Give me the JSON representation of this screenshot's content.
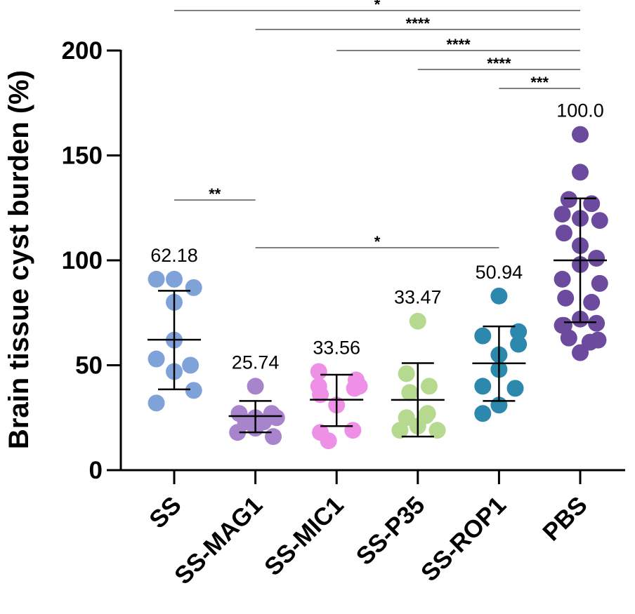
{
  "chart_data": {
    "type": "scatter",
    "title": "",
    "xlabel": "",
    "ylabel": "Brain tissue cyst burden (%)",
    "ylim": [
      0,
      200
    ],
    "yticks": [
      0,
      50,
      100,
      150,
      200
    ],
    "ytick_labels": [
      "0",
      "50",
      "100",
      "150",
      "200"
    ],
    "grid": false,
    "categories": [
      "SS",
      "SS-MAG1",
      "SS-MIC1",
      "SS-P35",
      "SS-ROP1",
      "PBS"
    ],
    "series": [
      {
        "name": "SS",
        "color": "#7FA3D8",
        "mean": 62.18,
        "mean_label": "62.18",
        "sd_low": 38.5,
        "sd_high": 85.5,
        "points": [
          [
            -0.22,
            91
          ],
          [
            0.0,
            91
          ],
          [
            0.24,
            87
          ],
          [
            0.0,
            80
          ],
          [
            0.0,
            62
          ],
          [
            -0.22,
            53
          ],
          [
            0.2,
            50
          ],
          [
            0.0,
            47
          ],
          [
            -0.22,
            32
          ],
          [
            0.24,
            38
          ]
        ]
      },
      {
        "name": "SS-MAG1",
        "color": "#A784CB",
        "mean": 25.74,
        "mean_label": "25.74",
        "sd_low": 18,
        "sd_high": 33,
        "points": [
          [
            0.0,
            40
          ],
          [
            -0.2,
            27
          ],
          [
            0.2,
            27
          ],
          [
            -0.12,
            23
          ],
          [
            0.1,
            23
          ],
          [
            0.0,
            25
          ],
          [
            -0.22,
            18
          ],
          [
            0.0,
            20
          ],
          [
            0.22,
            16
          ],
          [
            0.26,
            25
          ]
        ]
      },
      {
        "name": "SS-MIC1",
        "color": "#EE90E6",
        "mean": 33.56,
        "mean_label": "33.56",
        "sd_low": 21,
        "sd_high": 45.5,
        "points": [
          [
            -0.22,
            47
          ],
          [
            0.24,
            43
          ],
          [
            0.28,
            40
          ],
          [
            0.22,
            39
          ],
          [
            -0.2,
            36
          ],
          [
            -0.22,
            40
          ],
          [
            0.0,
            31
          ],
          [
            -0.2,
            18
          ],
          [
            0.2,
            19
          ],
          [
            -0.1,
            14
          ]
        ]
      },
      {
        "name": "SS-P35",
        "color": "#B5DA8F",
        "mean": 33.47,
        "mean_label": "33.47",
        "sd_low": 16,
        "sd_high": 51,
        "points": [
          [
            0.0,
            71
          ],
          [
            -0.14,
            46
          ],
          [
            0.14,
            40
          ],
          [
            -0.1,
            37
          ],
          [
            0.1,
            26
          ],
          [
            -0.14,
            25
          ],
          [
            -0.22,
            19
          ],
          [
            0.0,
            21
          ],
          [
            0.24,
            19
          ],
          [
            0.12,
            27
          ]
        ]
      },
      {
        "name": "SS-ROP1",
        "color": "#2C88AC",
        "mean": 50.94,
        "mean_label": "50.94",
        "sd_low": 33,
        "sd_high": 68.5,
        "points": [
          [
            0.0,
            83
          ],
          [
            -0.2,
            64
          ],
          [
            0.24,
            60
          ],
          [
            0.0,
            55
          ],
          [
            0.0,
            48
          ],
          [
            -0.2,
            40
          ],
          [
            0.2,
            39
          ],
          [
            0.0,
            31
          ],
          [
            -0.2,
            27
          ],
          [
            0.24,
            66
          ]
        ]
      },
      {
        "name": "PBS",
        "color": "#6C4B9F",
        "mean": 100.0,
        "mean_label": "100.0",
        "sd_low": 70.5,
        "sd_high": 129.5,
        "points": [
          [
            0.0,
            160
          ],
          [
            0.0,
            142
          ],
          [
            -0.14,
            129
          ],
          [
            0.14,
            127
          ],
          [
            -0.22,
            122
          ],
          [
            0.0,
            120
          ],
          [
            0.24,
            119
          ],
          [
            -0.2,
            113
          ],
          [
            0.0,
            107
          ],
          [
            0.2,
            101
          ],
          [
            0.0,
            98
          ],
          [
            -0.22,
            91
          ],
          [
            0.24,
            89
          ],
          [
            -0.18,
            82
          ],
          [
            0.14,
            80
          ],
          [
            0.0,
            72
          ],
          [
            -0.22,
            69
          ],
          [
            0.2,
            70
          ],
          [
            -0.14,
            63
          ],
          [
            0.12,
            61
          ],
          [
            -0.2,
            69
          ],
          [
            0.0,
            56
          ],
          [
            0.22,
            62
          ]
        ]
      }
    ],
    "significance": [
      {
        "from": 0,
        "to": 5,
        "label": "*",
        "y_level": 1
      },
      {
        "from": 1,
        "to": 5,
        "label": "****",
        "y_level": 2
      },
      {
        "from": 2,
        "to": 5,
        "label": "****",
        "y_level": 3
      },
      {
        "from": 3,
        "to": 5,
        "label": "****",
        "y_level": 4
      },
      {
        "from": 4,
        "to": 5,
        "label": "***",
        "y_level": 5
      },
      {
        "from": 0,
        "to": 1,
        "label": "**",
        "y_level": 6
      },
      {
        "from": 1,
        "to": 4,
        "label": "*",
        "y_level": 7
      }
    ]
  }
}
